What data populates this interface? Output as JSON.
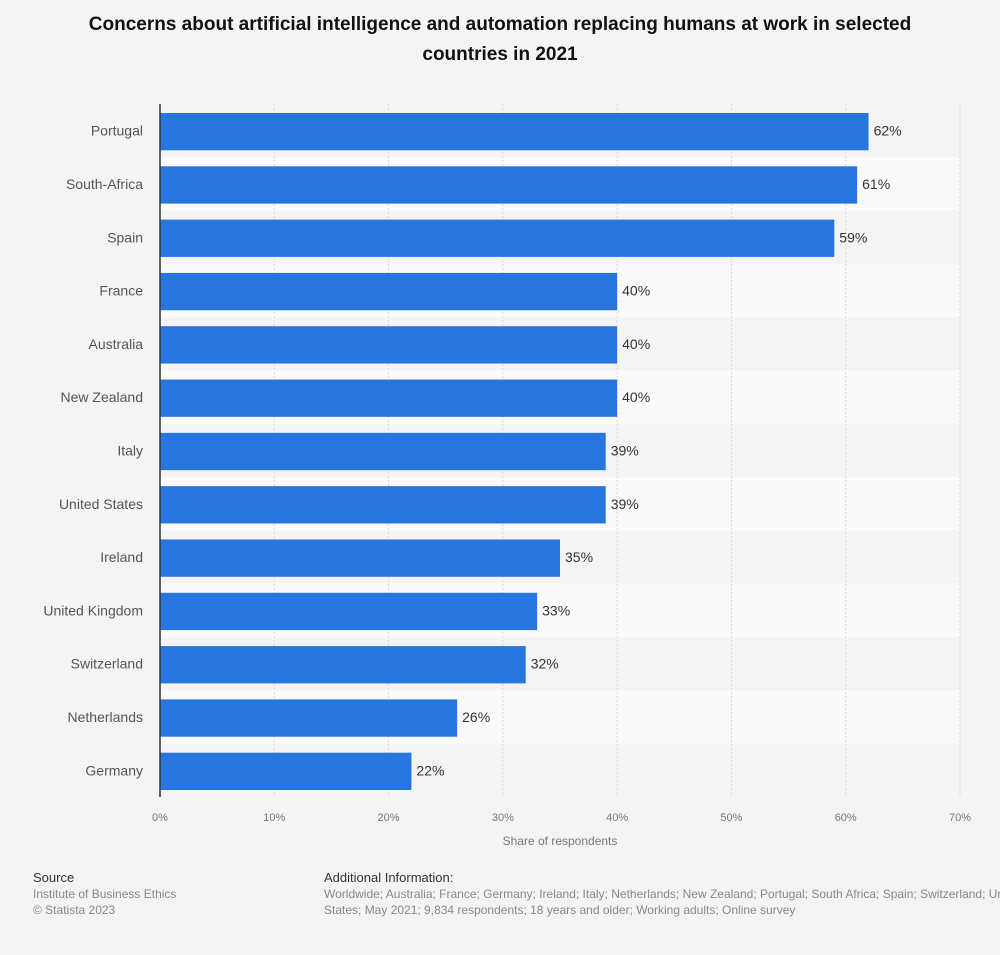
{
  "chart_data": {
    "type": "bar",
    "orientation": "horizontal",
    "title": "Concerns about artificial intelligence and automation replacing humans at work in selected countries in 2021",
    "categories": [
      "Portugal",
      "South-Africa",
      "Spain",
      "France",
      "Australia",
      "New Zealand",
      "Italy",
      "United States",
      "Ireland",
      "United Kingdom",
      "Switzerland",
      "Netherlands",
      "Germany"
    ],
    "values": [
      62,
      61,
      59,
      40,
      40,
      40,
      39,
      39,
      35,
      33,
      32,
      26,
      22
    ],
    "value_suffix": "%",
    "xlabel": "Share of respondents",
    "ylabel": "",
    "xlim": [
      0,
      70
    ],
    "xticks": [
      "0%",
      "10%",
      "20%",
      "30%",
      "40%",
      "50%",
      "60%",
      "70%"
    ],
    "grid": true,
    "bar_color": "#2876dd"
  },
  "footer": {
    "source_label": "Source",
    "source": "Institute of Business Ethics",
    "copyright": "© Statista 2023",
    "additional_label": "Additional Information:",
    "additional_line1": "Worldwide; Australia; France; Germany; Ireland; Italy; Netherlands; New Zealand; Portugal; South Africa; Spain; Switzerland; United Kingdom; United",
    "additional_line2": "States; May 2021; 9,834 respondents; 18 years and older; Working adults; Online survey"
  }
}
